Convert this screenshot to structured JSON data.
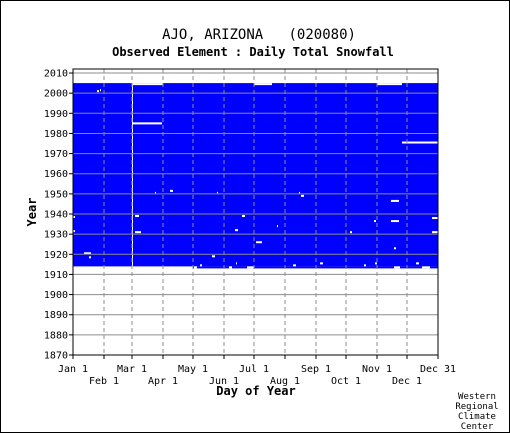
{
  "chart_data": {
    "type": "heatmap",
    "title": "AJO, ARIZONA   (020080)",
    "subtitle": "Observed Element : Daily Total Snowfall",
    "xlabel": "Day of Year",
    "ylabel": "Year",
    "xlim": [
      1,
      366
    ],
    "ylim": [
      1870,
      2012
    ],
    "y_ticks": [
      2010,
      2000,
      1990,
      1980,
      1970,
      1960,
      1950,
      1940,
      1930,
      1920,
      1910,
      1900,
      1890,
      1880,
      1870
    ],
    "x_ticks_top_row": [
      {
        "label": "Jan 1",
        "day": 1
      },
      {
        "label": "Mar 1",
        "day": 60
      },
      {
        "label": "May 1",
        "day": 121
      },
      {
        "label": "Jul 1",
        "day": 182
      },
      {
        "label": "Sep 1",
        "day": 244
      },
      {
        "label": "Nov 1",
        "day": 305
      },
      {
        "label": "Dec 31",
        "day": 366
      }
    ],
    "x_ticks_bottom_row": [
      {
        "label": "Feb 1",
        "day": 32
      },
      {
        "label": "Apr 1",
        "day": 91
      },
      {
        "label": "Jun 1",
        "day": 152
      },
      {
        "label": "Aug 1",
        "day": 213
      },
      {
        "label": "Oct 1",
        "day": 274
      },
      {
        "label": "Dec 1",
        "day": 335
      }
    ],
    "data_coverage": {
      "color": "#0000ff",
      "main_period": {
        "start_year": 1914,
        "end_year": 2005
      },
      "extended_segments": [
        {
          "day_start": 121,
          "day_end": 366,
          "start_year": 1913
        }
      ],
      "early_end_segments": [
        {
          "day_start": 60,
          "day_end": 91,
          "end_year": 2004
        },
        {
          "day_start": 182,
          "day_end": 200,
          "end_year": 2004
        },
        {
          "day_start": 305,
          "day_end": 330,
          "end_year": 2004
        }
      ]
    },
    "missing_data": [
      {
        "day_start": 60,
        "day_end": 61,
        "year_start": 1914,
        "year_end": 2005
      },
      {
        "day_start": 61,
        "day_end": 90,
        "year_start": 1984.5,
        "year_end": 1985.5
      },
      {
        "day_start": 330,
        "day_end": 366,
        "year_start": 1975,
        "year_end": 1976
      },
      {
        "day_start": 28,
        "day_end": 29,
        "year_start": 2001,
        "year_end": 2002
      },
      {
        "day_start": 12,
        "day_end": 19,
        "year_start": 1920,
        "year_end": 1921
      },
      {
        "day_start": 17,
        "day_end": 19,
        "year_start": 1918,
        "year_end": 1919
      },
      {
        "day_start": 1,
        "day_end": 3,
        "year_start": 1938,
        "year_end": 1939
      },
      {
        "day_start": 1,
        "day_end": 3,
        "year_start": 1931,
        "year_end": 1932
      },
      {
        "day_start": 63,
        "day_end": 67,
        "year_start": 1938.5,
        "year_end": 1939.5
      },
      {
        "day_start": 63,
        "day_end": 69,
        "year_start": 1930.5,
        "year_end": 1931.5
      },
      {
        "day_start": 83,
        "day_end": 84,
        "year_start": 1950,
        "year_end": 1951
      },
      {
        "day_start": 98,
        "day_end": 101,
        "year_start": 1951,
        "year_end": 1952
      },
      {
        "day_start": 145,
        "day_end": 146,
        "year_start": 1950,
        "year_end": 1951
      },
      {
        "day_start": 163,
        "day_end": 166,
        "year_start": 1931.5,
        "year_end": 1932.5
      },
      {
        "day_start": 170,
        "day_end": 173,
        "year_start": 1938.5,
        "year_end": 1939.5
      },
      {
        "day_start": 184,
        "day_end": 190,
        "year_start": 1925.5,
        "year_end": 1926.5
      },
      {
        "day_start": 140,
        "day_end": 143,
        "year_start": 1918.5,
        "year_end": 1919.5
      },
      {
        "day_start": 205,
        "day_end": 206,
        "year_start": 1933.5,
        "year_end": 1934.5
      },
      {
        "day_start": 227,
        "day_end": 228,
        "year_start": 1950,
        "year_end": 1951
      },
      {
        "day_start": 229,
        "day_end": 232,
        "year_start": 1948.5,
        "year_end": 1949.5
      },
      {
        "day_start": 278,
        "day_end": 280,
        "year_start": 1930.5,
        "year_end": 1931.5
      },
      {
        "day_start": 302,
        "day_end": 304,
        "year_start": 1936,
        "year_end": 1937
      },
      {
        "day_start": 319,
        "day_end": 327,
        "year_start": 1946,
        "year_end": 1947
      },
      {
        "day_start": 319,
        "day_end": 327,
        "year_start": 1936,
        "year_end": 1937
      },
      {
        "day_start": 322,
        "day_end": 324,
        "year_start": 1922.5,
        "year_end": 1923.5
      },
      {
        "day_start": 360,
        "day_end": 366,
        "year_start": 1937.5,
        "year_end": 1938.5
      },
      {
        "day_start": 360,
        "day_end": 366,
        "year_start": 1930.5,
        "year_end": 1931.5
      },
      {
        "day_start": 25,
        "day_end": 27,
        "year_start": 2000.5,
        "year_end": 2001.5
      },
      {
        "day_start": 122,
        "day_end": 125,
        "year_start": 1913,
        "year_end": 1914
      },
      {
        "day_start": 128,
        "day_end": 130,
        "year_start": 1914,
        "year_end": 1915
      },
      {
        "day_start": 157,
        "day_end": 160,
        "year_start": 1913,
        "year_end": 1914
      },
      {
        "day_start": 164,
        "day_end": 165,
        "year_start": 1915,
        "year_end": 1916
      },
      {
        "day_start": 175,
        "day_end": 182,
        "year_start": 1913,
        "year_end": 1914
      },
      {
        "day_start": 221,
        "day_end": 224,
        "year_start": 1914,
        "year_end": 1915
      },
      {
        "day_start": 248,
        "day_end": 251,
        "year_start": 1915,
        "year_end": 1916
      },
      {
        "day_start": 292,
        "day_end": 294,
        "year_start": 1914,
        "year_end": 1915
      },
      {
        "day_start": 303,
        "day_end": 305,
        "year_start": 1915,
        "year_end": 1916
      },
      {
        "day_start": 322,
        "day_end": 328,
        "year_start": 1913,
        "year_end": 1914
      },
      {
        "day_start": 344,
        "day_end": 347,
        "year_start": 1915,
        "year_end": 1916
      },
      {
        "day_start": 350,
        "day_end": 358,
        "year_start": 1913,
        "year_end": 1914
      }
    ]
  },
  "credit": [
    "Western",
    "Regional",
    "Climate",
    "Center"
  ]
}
